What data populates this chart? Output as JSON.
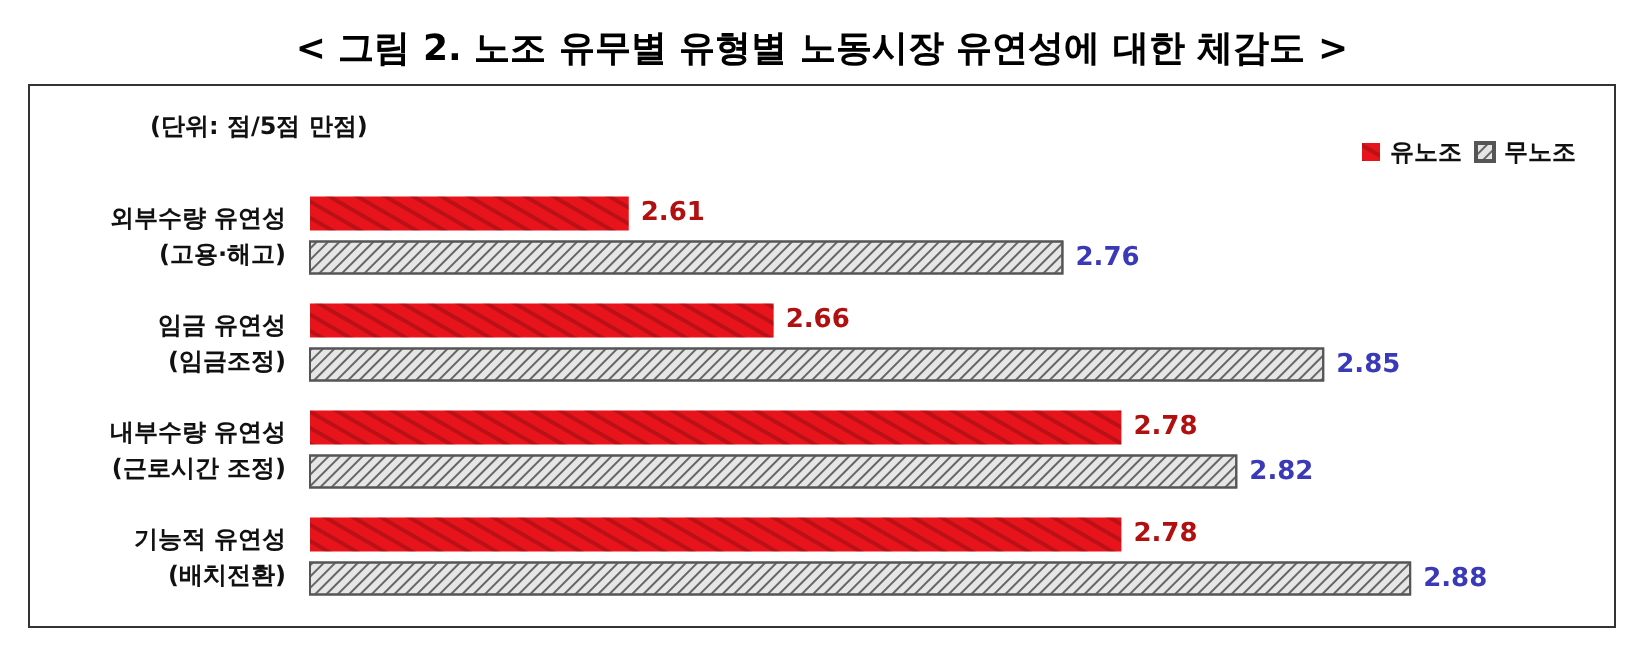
{
  "chart_data": {
    "type": "bar",
    "orientation": "horizontal",
    "title": "< 그림 2. 노조 유무별 유형별 노동시장 유연성에 대한 체감도 >",
    "annotations": [
      "(단위: 점/5점 만점)"
    ],
    "categories": [
      "외부수량 유연성\n(고용·해고)",
      "임금 유연성\n(임금조정)",
      "내부수량 유연성\n(근로시간 조정)",
      "기능적 유연성\n(배치전환)"
    ],
    "series": [
      {
        "name": "유노조",
        "color": "#e8141c",
        "values": [
          2.61,
          2.66,
          2.78,
          2.78
        ]
      },
      {
        "name": "무노조",
        "color": "#e6e6e6",
        "values": [
          2.76,
          2.85,
          2.82,
          2.88
        ]
      }
    ],
    "xlim": [
      2.5,
      2.95
    ],
    "tick_labels": "y",
    "data_labels": true,
    "legend": "top right"
  }
}
